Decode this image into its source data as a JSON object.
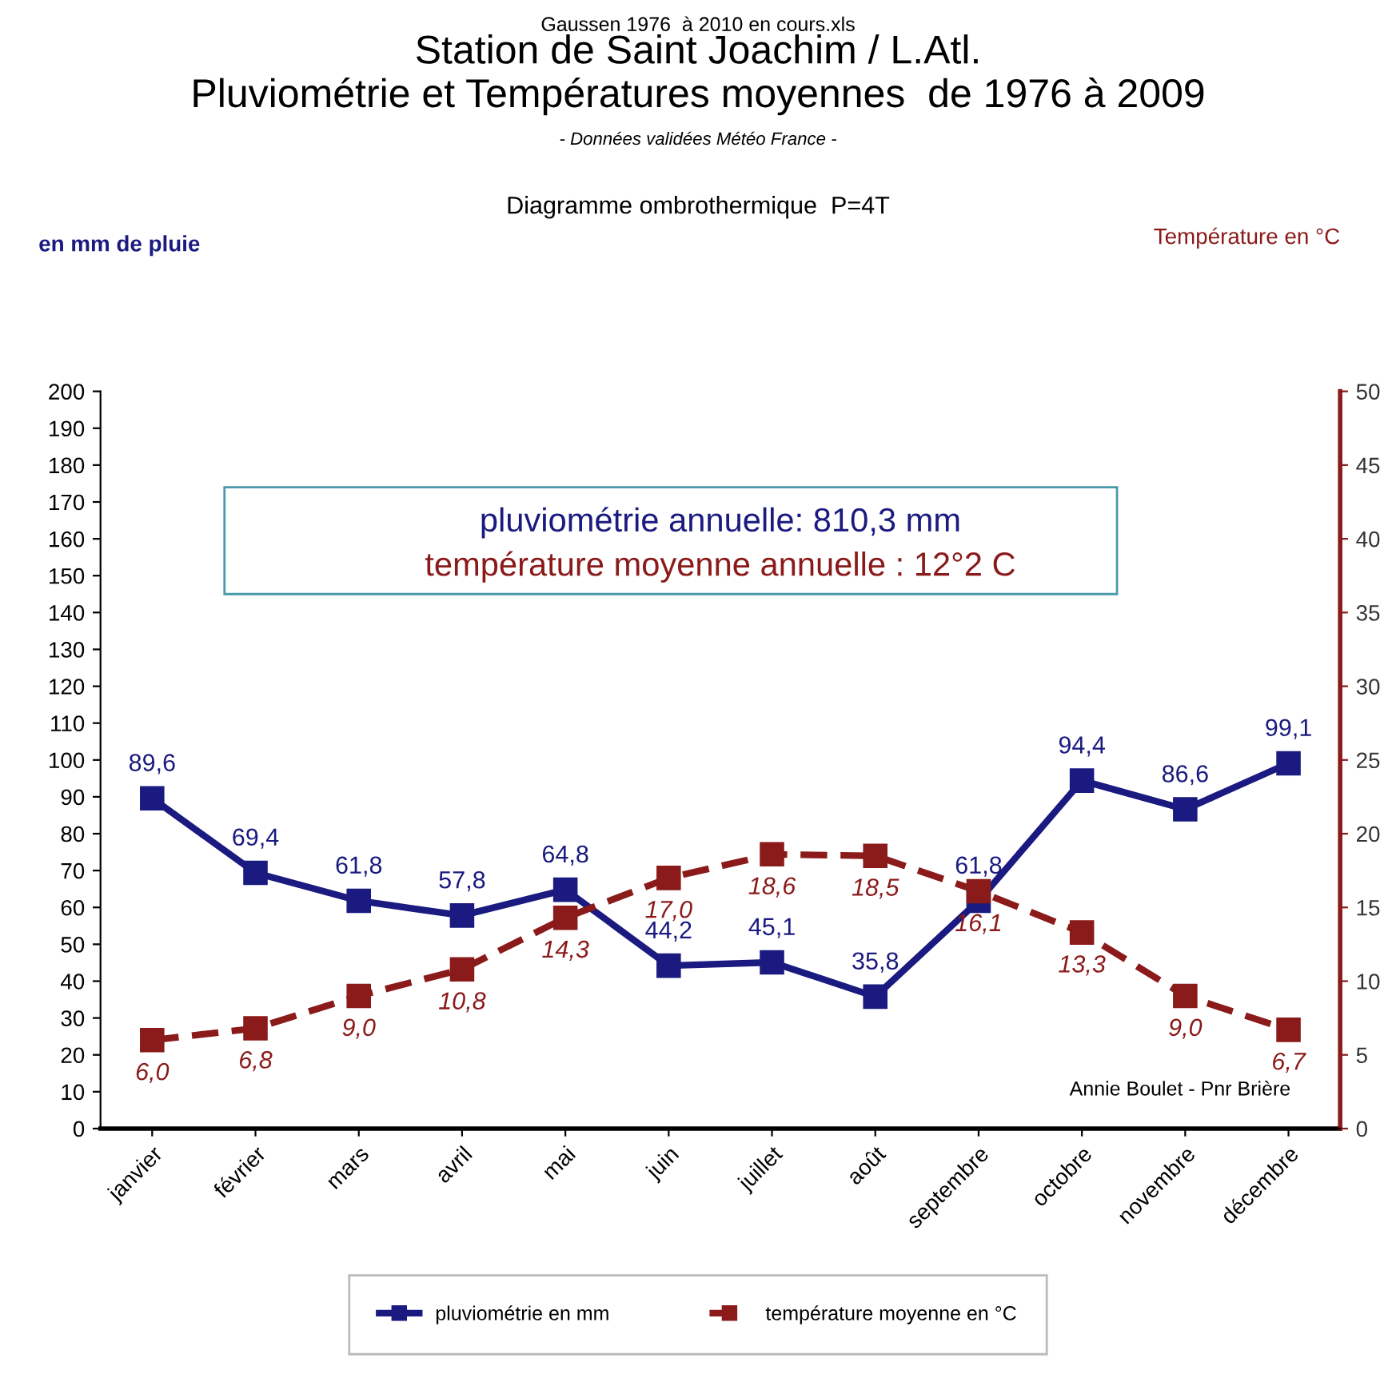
{
  "chart_data": {
    "type": "line",
    "title": "Station de Saint Joachim / L.Atl.\nPluviométrie et Températures moyennes  de 1976 à 2009",
    "subtitle": "- Données validées Météo France -",
    "annotations": [
      "Gaussen 1976  à 2010 en cours.xls",
      "Diagramme ombrothermique  P=4T",
      "pluviométrie annuelle: 810,3 mm",
      "température moyenne annuelle : 12°2 C",
      "Annie Boulet - Pnr Brière",
      "en mm de pluie",
      "Température en °C"
    ],
    "categories": [
      "janvier",
      "février",
      "mars",
      "avril",
      "mai",
      "juin",
      "juillet",
      "août",
      "septembre",
      "octobre",
      "novembre",
      "décembre"
    ],
    "series": [
      {
        "name": "pluviométrie en mm",
        "color": "#1a1a80",
        "line_style": "solid",
        "values": [
          89.6,
          69.4,
          61.8,
          57.8,
          64.8,
          44.2,
          45.1,
          35.8,
          61.8,
          94.4,
          86.6,
          99.1
        ],
        "value_labels": [
          "89,6",
          "69,4",
          "61,8",
          "57,8",
          "64,8",
          "44,2",
          "45,1",
          "35,8",
          "61,8",
          "94,4",
          "86,6",
          "99,1"
        ]
      },
      {
        "name": "température moyenne en °C",
        "color": "#8b1a1a",
        "line_style": "dashed",
        "axis": "y2",
        "values": [
          6.0,
          6.8,
          9.0,
          10.8,
          14.3,
          17.0,
          18.6,
          18.5,
          16.1,
          13.3,
          9.0,
          6.7
        ],
        "value_labels": [
          "6,0",
          "6,8",
          "9,0",
          "10,8",
          "14,3",
          "17,0",
          "18,6",
          "18,5",
          "16,1",
          "13,3",
          "9,0",
          "6,7"
        ]
      }
    ],
    "ylim": [
      0,
      200
    ],
    "yticks": [
      0,
      10,
      20,
      30,
      40,
      50,
      60,
      70,
      80,
      90,
      100,
      110,
      120,
      130,
      140,
      150,
      160,
      170,
      180,
      190,
      200
    ],
    "y2lim": [
      0,
      50
    ],
    "y2ticks": [
      0,
      5,
      10,
      15,
      20,
      25,
      30,
      35,
      40,
      45,
      50
    ],
    "marker": "square",
    "grid": false,
    "legend": "bottom"
  }
}
